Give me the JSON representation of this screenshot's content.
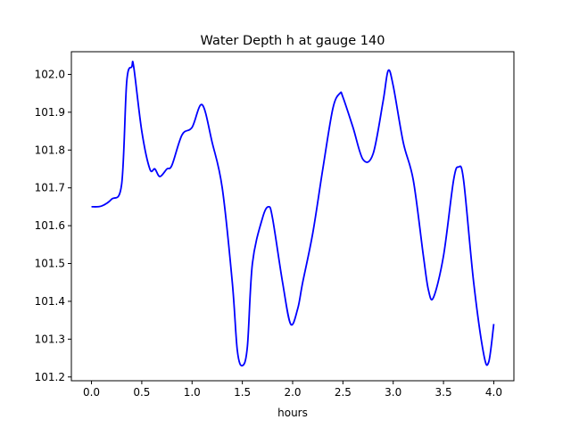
{
  "chart_data": {
    "type": "line",
    "title": "Water Depth h at gauge 140",
    "xlabel": "hours",
    "ylabel": "",
    "xlim": [
      -0.2,
      4.2
    ],
    "ylim": [
      101.19,
      102.06
    ],
    "xticks": [
      0.0,
      0.5,
      1.0,
      1.5,
      2.0,
      2.5,
      3.0,
      3.5,
      4.0
    ],
    "xtick_labels": [
      "0.0",
      "0.5",
      "1.0",
      "1.5",
      "2.0",
      "2.5",
      "3.0",
      "3.5",
      "4.0"
    ],
    "yticks": [
      101.2,
      101.3,
      101.4,
      101.5,
      101.6,
      101.7,
      101.8,
      101.9,
      102.0
    ],
    "ytick_labels": [
      "101.2",
      "101.3",
      "101.4",
      "101.5",
      "101.6",
      "101.7",
      "101.8",
      "101.9",
      "102.0"
    ],
    "grid": false,
    "series": [
      {
        "name": "h",
        "color": "#0000ff",
        "x": [
          0.0,
          0.1,
          0.2,
          0.3,
          0.35,
          0.4,
          0.42,
          0.5,
          0.58,
          0.63,
          0.68,
          0.75,
          0.8,
          0.9,
          1.0,
          1.1,
          1.2,
          1.3,
          1.4,
          1.45,
          1.5,
          1.55,
          1.6,
          1.7,
          1.76,
          1.8,
          1.9,
          1.98,
          2.05,
          2.1,
          2.2,
          2.3,
          2.4,
          2.47,
          2.5,
          2.6,
          2.7,
          2.8,
          2.9,
          2.95,
          3.0,
          3.1,
          3.2,
          3.3,
          3.35,
          3.4,
          3.5,
          3.6,
          3.65,
          3.7,
          3.8,
          3.9,
          3.95,
          4.0
        ],
        "y": [
          101.65,
          101.652,
          101.67,
          101.71,
          101.98,
          102.02,
          102.02,
          101.85,
          101.75,
          101.75,
          101.73,
          101.75,
          101.76,
          101.84,
          101.86,
          101.92,
          101.82,
          101.7,
          101.45,
          101.27,
          101.23,
          101.28,
          101.5,
          101.62,
          101.65,
          101.62,
          101.45,
          101.34,
          101.38,
          101.45,
          101.58,
          101.75,
          101.91,
          101.95,
          101.94,
          101.86,
          101.775,
          101.79,
          101.93,
          102.01,
          101.97,
          101.82,
          101.72,
          101.52,
          101.43,
          101.41,
          101.52,
          101.72,
          101.755,
          101.72,
          101.45,
          101.26,
          101.24,
          101.34
        ]
      }
    ]
  }
}
